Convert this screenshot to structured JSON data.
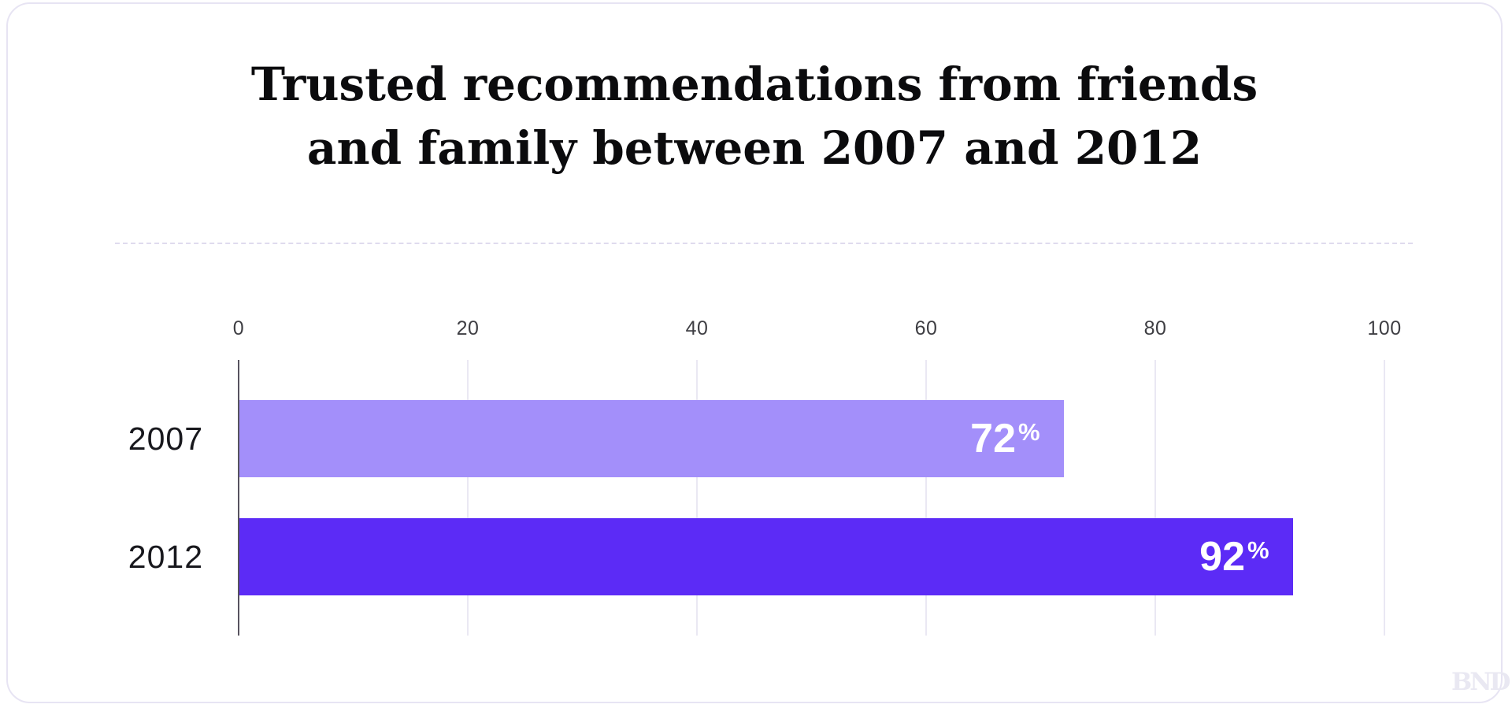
{
  "card": {
    "watermark": "BND"
  },
  "chart_data": {
    "type": "bar",
    "orientation": "horizontal",
    "title": "Trusted recommendations from friends and family between 2007 and 2012",
    "title_lines": [
      "Trusted recommendations from friends",
      "and family between 2007 and 2012"
    ],
    "categories": [
      "2007",
      "2012"
    ],
    "values": [
      72,
      92
    ],
    "value_suffix": "%",
    "ticks": [
      0,
      20,
      40,
      60,
      80,
      100
    ],
    "xlim": [
      0,
      100
    ],
    "xlabel": "",
    "ylabel": "",
    "grid": true,
    "legend": "none",
    "bar_colors": [
      "#a38ffa",
      "#5c2bf6"
    ],
    "colors": {
      "grid_line": "#eae8f3",
      "axis_line": "#57535f",
      "tick_text": "#3e3e43",
      "category_text": "#18181d",
      "value_text": "#ffffff",
      "card_border": "#e7e4f3",
      "divider": "#dfdbee",
      "watermark_text": "#e9e8f2"
    }
  }
}
